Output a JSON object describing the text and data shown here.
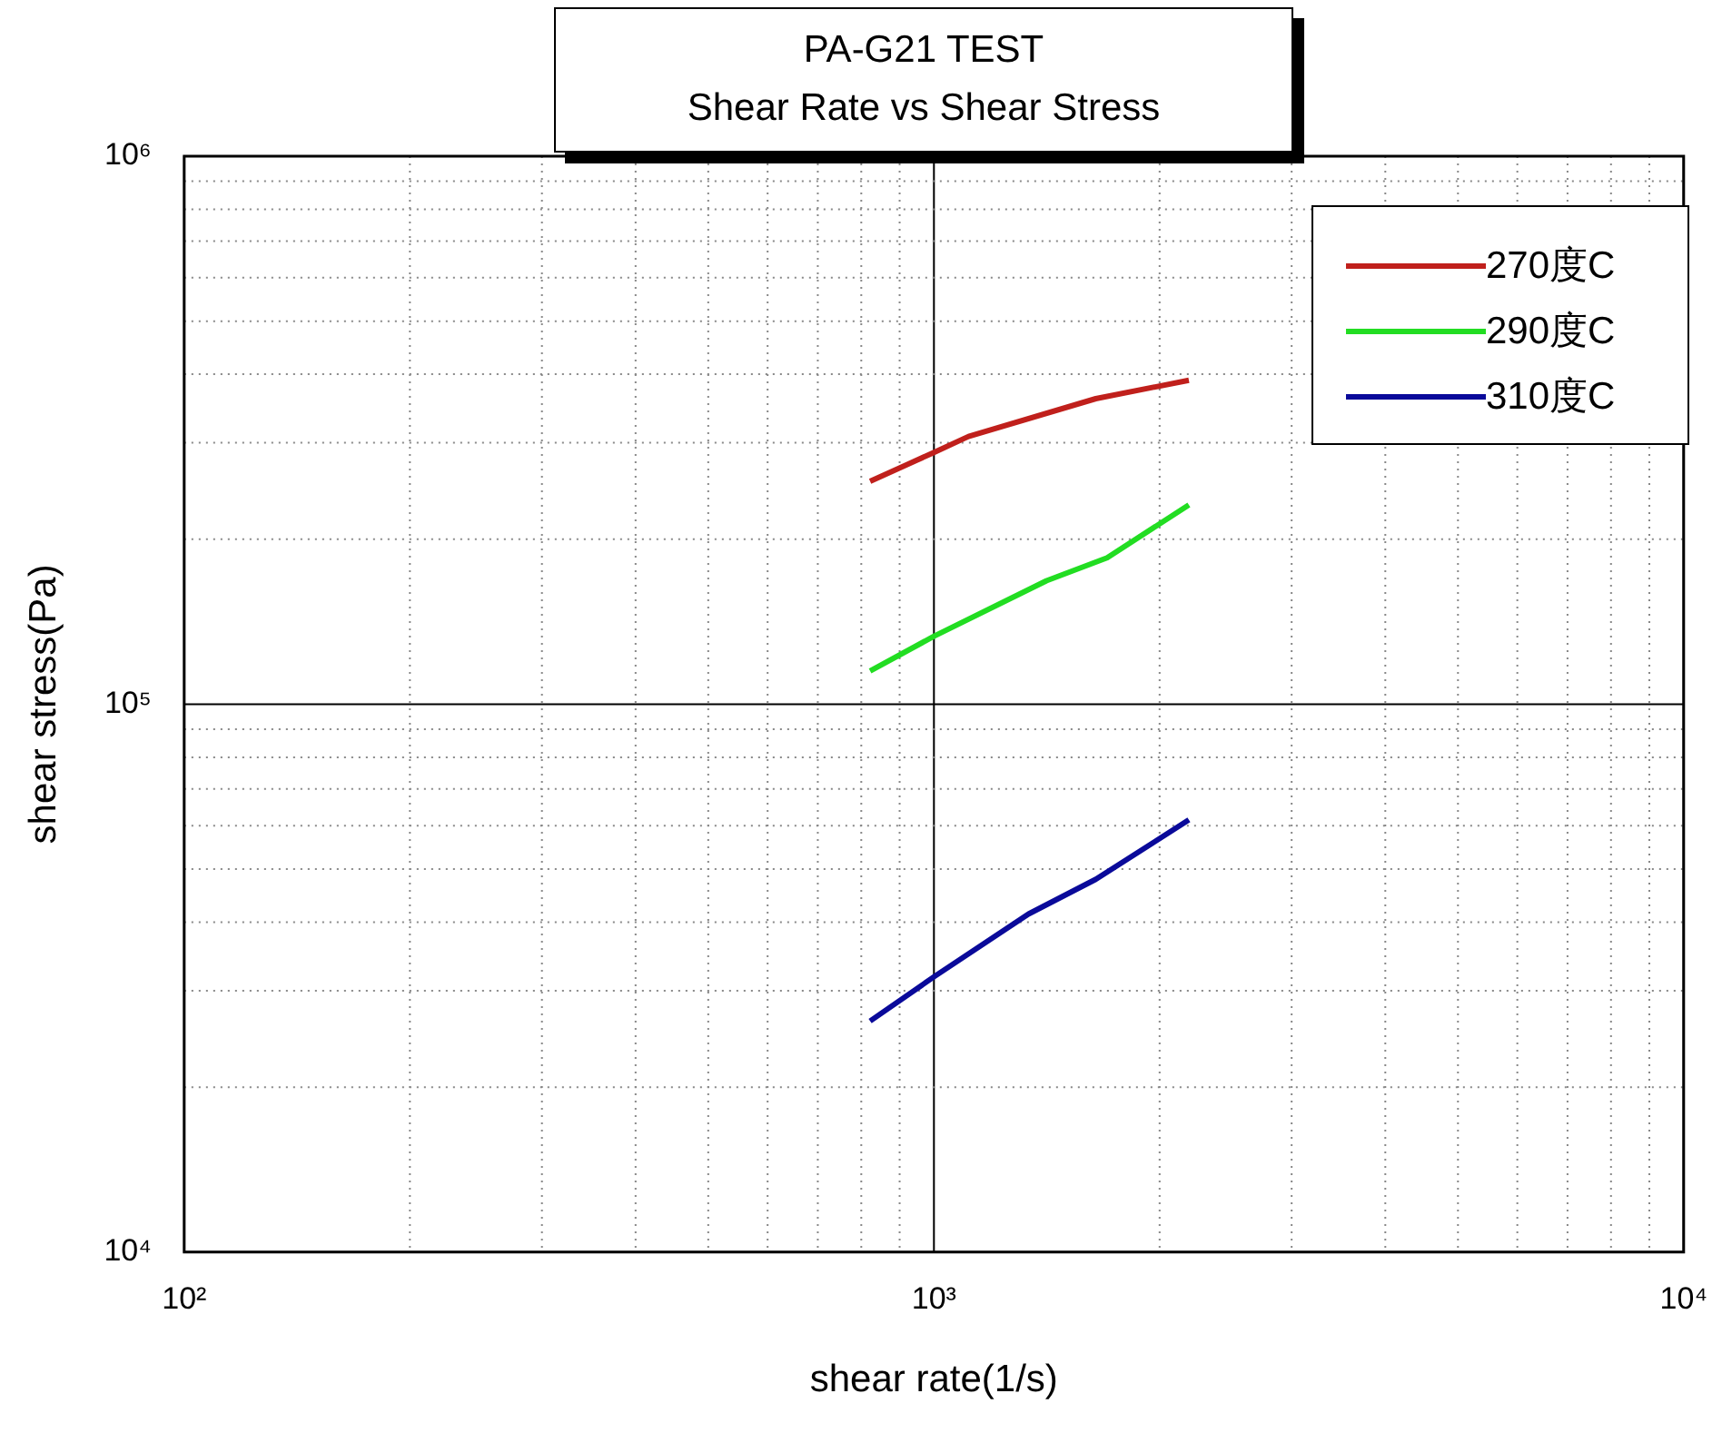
{
  "chart_data": {
    "type": "line",
    "title": "PA-G21 TEST\nShear Rate vs Shear Stress",
    "xlabel": "shear rate(1/s)",
    "ylabel": "shear stress(Pa)",
    "log": "xy",
    "grid": true,
    "legend": "top right",
    "marker": "none",
    "line_style": "solid",
    "xlim": [
      100,
      10000
    ],
    "ylim": [
      10000,
      1000000
    ],
    "xticks": [
      {
        "value": 100,
        "label": "10²"
      },
      {
        "value": 200,
        "label": null
      },
      {
        "value": 300,
        "label": null
      },
      {
        "value": 400,
        "label": null
      },
      {
        "value": 500,
        "label": null
      },
      {
        "value": 600,
        "label": null
      },
      {
        "value": 700,
        "label": null
      },
      {
        "value": 800,
        "label": null
      },
      {
        "value": 900,
        "label": null
      },
      {
        "value": 1000,
        "label": "10³"
      },
      {
        "value": 2000,
        "label": null
      },
      {
        "value": 3000,
        "label": null
      },
      {
        "value": 4000,
        "label": null
      },
      {
        "value": 5000,
        "label": null
      },
      {
        "value": 6000,
        "label": null
      },
      {
        "value": 7000,
        "label": null
      },
      {
        "value": 8000,
        "label": null
      },
      {
        "value": 9000,
        "label": null
      },
      {
        "value": 10000,
        "label": "10⁴"
      }
    ],
    "yticks": [
      {
        "value": 10000,
        "label": "10⁴"
      },
      {
        "value": 20000,
        "label": null
      },
      {
        "value": 30000,
        "label": null
      },
      {
        "value": 40000,
        "label": null
      },
      {
        "value": 50000,
        "label": null
      },
      {
        "value": 60000,
        "label": null
      },
      {
        "value": 70000,
        "label": null
      },
      {
        "value": 80000,
        "label": null
      },
      {
        "value": 90000,
        "label": null
      },
      {
        "value": 100000,
        "label": "10⁵"
      },
      {
        "value": 200000,
        "label": null
      },
      {
        "value": 300000,
        "label": null
      },
      {
        "value": 400000,
        "label": null
      },
      {
        "value": 500000,
        "label": null
      },
      {
        "value": 600000,
        "label": null
      },
      {
        "value": 700000,
        "label": null
      },
      {
        "value": 800000,
        "label": null
      },
      {
        "value": 900000,
        "label": null
      },
      {
        "value": 1000000,
        "label": "10⁶"
      }
    ],
    "series": [
      {
        "name": "270度C",
        "color": "#c0201c",
        "x": [
          822,
          1000,
          1112,
          1644,
          2188
        ],
        "values": [
          255000,
          288000,
          308000,
          361000,
          390000
        ]
      },
      {
        "name": "290度C",
        "color": "#22dd22",
        "x": [
          822,
          1000,
          1413,
          1702,
          2188
        ],
        "values": [
          115000,
          133000,
          168000,
          185000,
          231000
        ]
      },
      {
        "name": "310度C",
        "color": "#0a0a9a",
        "x": [
          822,
          1000,
          1337,
          1644,
          2188
        ],
        "values": [
          26400,
          31800,
          41400,
          47900,
          61500
        ]
      }
    ]
  }
}
